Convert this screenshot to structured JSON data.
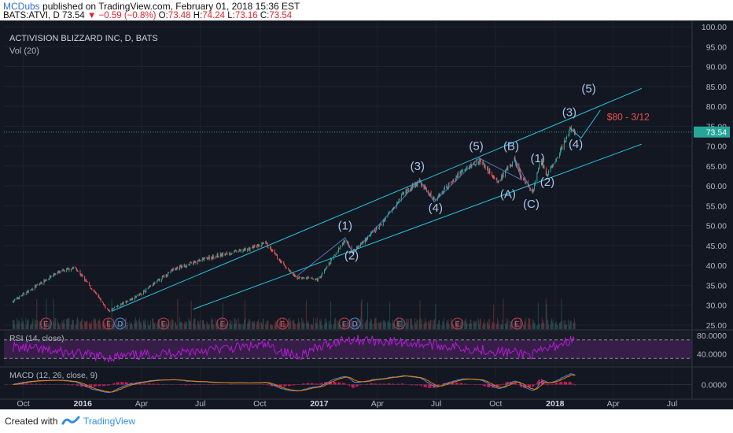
{
  "header": {
    "publisher": "MCDubs",
    "published_text": "published on TradingView.com, February 01, 2018 15:36 EST",
    "symbol": "BATS:ATVI, D",
    "last": "73.54",
    "change": "−0.59 (−0.8%)",
    "o_label": "O:",
    "o": "73.48",
    "h_label": "H:",
    "h": "74.24",
    "l_label": "L:",
    "l": "73.16",
    "c_label": "C:",
    "c": "73.54"
  },
  "footer": {
    "created_with": "Created with",
    "brand": "TradingView"
  },
  "colors": {
    "background": "#131722",
    "up": "#26a69a",
    "down": "#ef5350",
    "channel": "#26c6da",
    "wave_label": "#a9c4e8",
    "target_text": "#ef5350",
    "rsi": "#b31bd2",
    "rsi_band": "#3b1f4d",
    "macd_line": "#4a8ee0",
    "signal_line": "#f57c00",
    "last_price_tag": "#26a69a"
  },
  "chart_data": [
    {
      "type": "candlestick",
      "title": "ACTIVISION BLIZZARD INC, D, BATS",
      "indicator_label": "Vol (20)",
      "x_ticks": [
        "Oct",
        "2016",
        "Apr",
        "Jul",
        "Oct",
        "2017",
        "Apr",
        "Jul",
        "Oct",
        "2018",
        "Apr",
        "Jul"
      ],
      "y_ticks": [
        "25.00",
        "30.00",
        "35.00",
        "40.00",
        "45.00",
        "50.00",
        "55.00",
        "60.00",
        "65.00",
        "70.00",
        "75.00",
        "80.00",
        "85.00",
        "90.00",
        "95.00",
        "100.00"
      ],
      "ylim": [
        24,
        100
      ],
      "last_price_label": "73.54",
      "price_anchors": [
        {
          "date": "2015-09-15",
          "close": 31.0
        },
        {
          "date": "2015-11-20",
          "close": 38.0
        },
        {
          "date": "2015-12-20",
          "close": 39.5
        },
        {
          "date": "2016-01-25",
          "close": 32.0
        },
        {
          "date": "2016-02-10",
          "close": 28.5
        },
        {
          "date": "2016-04-01",
          "close": 33.0
        },
        {
          "date": "2016-05-20",
          "close": 39.0
        },
        {
          "date": "2016-07-15",
          "close": 42.0
        },
        {
          "date": "2016-09-10",
          "close": 44.0
        },
        {
          "date": "2016-10-10",
          "close": 45.5
        },
        {
          "date": "2016-11-05",
          "close": 40.5
        },
        {
          "date": "2016-11-25",
          "close": 37.0
        },
        {
          "date": "2016-12-31",
          "close": 36.5
        },
        {
          "date": "2017-02-10",
          "close": 46.5
        },
        {
          "date": "2017-02-22",
          "close": 43.5
        },
        {
          "date": "2017-04-05",
          "close": 50.0
        },
        {
          "date": "2017-05-10",
          "close": 58.0
        },
        {
          "date": "2017-06-05",
          "close": 61.0
        },
        {
          "date": "2017-06-28",
          "close": 56.5
        },
        {
          "date": "2017-08-05",
          "close": 63.0
        },
        {
          "date": "2017-09-05",
          "close": 66.5
        },
        {
          "date": "2017-10-05",
          "close": 61.0
        },
        {
          "date": "2017-10-30",
          "close": 66.5
        },
        {
          "date": "2017-11-10",
          "close": 62.0
        },
        {
          "date": "2017-11-28",
          "close": 58.5
        },
        {
          "date": "2017-12-10",
          "close": 66.5
        },
        {
          "date": "2017-12-20",
          "close": 62.5
        },
        {
          "date": "2018-01-10",
          "close": 69.0
        },
        {
          "date": "2018-01-25",
          "close": 74.5
        },
        {
          "date": "2018-02-01",
          "close": 73.5
        }
      ],
      "channel": {
        "upper": [
          {
            "date": "2016-02-15",
            "price": 28.5
          },
          {
            "date": "2018-05-15",
            "price": 84.5
          }
        ],
        "lower": [
          {
            "date": "2016-06-20",
            "price": 29.0
          },
          {
            "date": "2018-05-15",
            "price": 70.5
          }
        ]
      },
      "projection": [
        {
          "date": "2018-01-24",
          "price": 74.5
        },
        {
          "date": "2018-02-10",
          "price": 72.0
        },
        {
          "date": "2018-03-12",
          "price": 79.0
        }
      ],
      "target_annotation": "$80 - 3/12",
      "wave_labels": [
        {
          "text": "(1)",
          "date": "2017-02-10",
          "price": 49.0
        },
        {
          "text": "(2)",
          "date": "2017-02-20",
          "price": 41.5
        },
        {
          "text": "(3)",
          "date": "2017-06-02",
          "price": 64.0
        },
        {
          "text": "(4)",
          "date": "2017-06-30",
          "price": 53.5
        },
        {
          "text": "(5)",
          "date": "2017-09-01",
          "price": 69.0
        },
        {
          "text": "(A)",
          "date": "2017-10-20",
          "price": 57.0
        },
        {
          "text": "(B)",
          "date": "2017-10-25",
          "price": 69.0
        },
        {
          "text": "(C)",
          "date": "2017-11-25",
          "price": 54.5
        },
        {
          "text": "(1)",
          "date": "2017-12-05",
          "price": 66.0
        },
        {
          "text": "(2)",
          "date": "2017-12-20",
          "price": 60.0
        },
        {
          "text": "(3)",
          "date": "2018-01-23",
          "price": 77.5
        },
        {
          "text": "(4)",
          "date": "2018-02-02",
          "price": 69.5
        },
        {
          "text": "(5)",
          "date": "2018-02-22",
          "price": 83.5
        }
      ],
      "events": [
        {
          "type": "E",
          "date": "2015-11-05"
        },
        {
          "type": "E",
          "date": "2016-02-10"
        },
        {
          "type": "D",
          "date": "2016-02-28"
        },
        {
          "type": "E",
          "date": "2016-05-05"
        },
        {
          "type": "E",
          "date": "2016-08-04"
        },
        {
          "type": "E",
          "date": "2016-11-05"
        },
        {
          "type": "E",
          "date": "2017-02-09"
        },
        {
          "type": "D",
          "date": "2017-02-25"
        },
        {
          "type": "E",
          "date": "2017-05-05"
        },
        {
          "type": "E",
          "date": "2017-08-03"
        },
        {
          "type": "E",
          "date": "2017-11-03"
        }
      ]
    },
    {
      "type": "line",
      "title": "RSI (14, close)",
      "y_ticks": [
        "80.0000",
        "40.0000"
      ],
      "bands": [
        70,
        30
      ],
      "ylim": [
        15,
        90
      ],
      "values_description_points": [
        {
          "date": "2015-09-15",
          "value": 55
        },
        {
          "date": "2016-02-10",
          "value": 32
        },
        {
          "date": "2016-10-10",
          "value": 58
        },
        {
          "date": "2016-11-25",
          "value": 35
        },
        {
          "date": "2017-02-10",
          "value": 72
        },
        {
          "date": "2017-06-05",
          "value": 62
        },
        {
          "date": "2017-11-28",
          "value": 38
        },
        {
          "date": "2018-01-25",
          "value": 70
        },
        {
          "date": "2018-02-01",
          "value": 65
        }
      ]
    },
    {
      "type": "line",
      "title": "MACD (12, 26, close, 9)",
      "y_ticks": [
        "0.0000"
      ],
      "series": [
        {
          "name": "MACD"
        },
        {
          "name": "Signal"
        }
      ]
    }
  ]
}
